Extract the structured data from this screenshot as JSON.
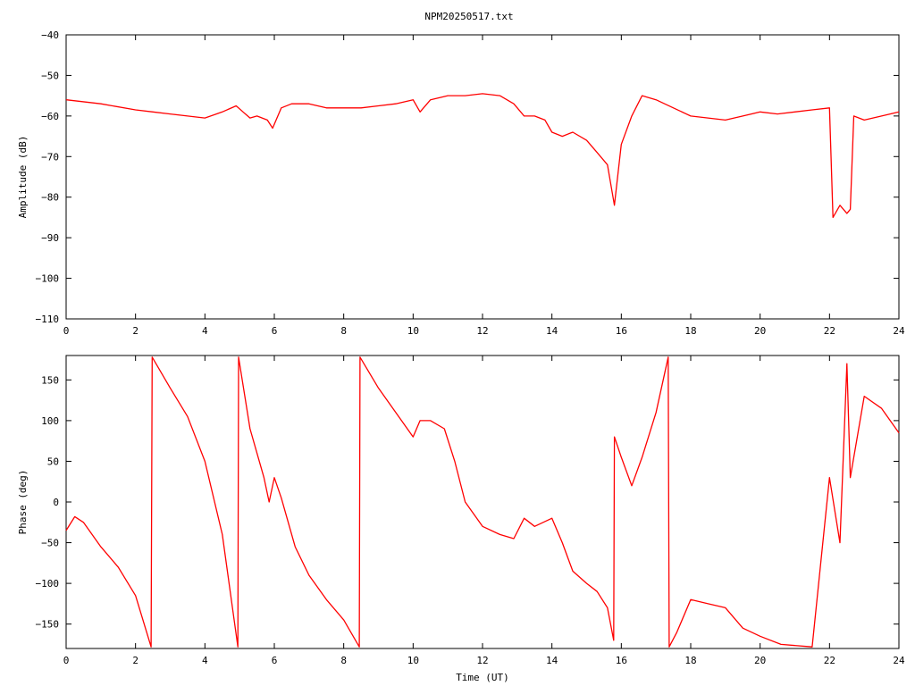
{
  "figure": {
    "title": "NPM20250517.txt",
    "background": "#ffffff",
    "line_color": "#ff0000"
  },
  "chart_data": [
    {
      "type": "line",
      "title": "NPM20250517.txt",
      "xlabel": "",
      "ylabel": "Amplitude (dB)",
      "xlim": [
        0,
        24
      ],
      "ylim": [
        -110,
        -40
      ],
      "xticks": [
        0,
        2,
        4,
        6,
        8,
        10,
        12,
        14,
        16,
        18,
        20,
        22,
        24
      ],
      "yticks": [
        -40,
        -50,
        -60,
        -70,
        -80,
        -90,
        -100,
        -110
      ],
      "grid": false,
      "series": [
        {
          "color": "#ff0000",
          "x": [
            0,
            1,
            2,
            2.5,
            3,
            3.5,
            4,
            4.5,
            4.9,
            5.1,
            5.3,
            5.5,
            5.8,
            5.95,
            6.2,
            6.5,
            7,
            7.5,
            8,
            8.5,
            9,
            9.5,
            10,
            10.2,
            10.5,
            11,
            11.5,
            12,
            12.5,
            12.9,
            13.2,
            13.5,
            13.8,
            14,
            14.3,
            14.6,
            15,
            15.3,
            15.6,
            15.8,
            16,
            16.3,
            16.6,
            17,
            17.5,
            18,
            18.5,
            19,
            19.5,
            20,
            20.5,
            21,
            21.5,
            22,
            22.1,
            22.3,
            22.5,
            22.6,
            22.7,
            23,
            23.5,
            24
          ],
          "y": [
            -56,
            -57,
            -58.5,
            -59,
            -59.5,
            -60,
            -60.5,
            -59,
            -57.5,
            -59,
            -60.5,
            -60,
            -61,
            -63,
            -58,
            -57,
            -57,
            -58,
            -58,
            -58,
            -57.5,
            -57,
            -56,
            -59,
            -56,
            -55,
            -55,
            -54.5,
            -55,
            -57,
            -60,
            -60,
            -61,
            -64,
            -65,
            -64,
            -66,
            -69,
            -72,
            -82,
            -67,
            -60,
            -55,
            -56,
            -58,
            -60,
            -60.5,
            -61,
            -60,
            -59,
            -59.5,
            -59,
            -58.5,
            -58,
            -85,
            -82,
            -84,
            -83,
            -60,
            -61,
            -60,
            -59
          ]
        }
      ]
    },
    {
      "type": "line",
      "title": "",
      "xlabel": "Time (UT)",
      "ylabel": "Phase (deg)",
      "xlim": [
        0,
        24
      ],
      "ylim": [
        -180,
        180
      ],
      "xticks": [
        0,
        2,
        4,
        6,
        8,
        10,
        12,
        14,
        16,
        18,
        20,
        22,
        24
      ],
      "yticks": [
        150,
        100,
        50,
        0,
        -50,
        -100,
        -150
      ],
      "grid": false,
      "series": [
        {
          "color": "#ff0000",
          "x": [
            0,
            0.25,
            0.5,
            1,
            1.5,
            2,
            2.45,
            2.48,
            3,
            3.5,
            4,
            4.5,
            4.95,
            4.97,
            5.3,
            5.7,
            5.85,
            6.0,
            6.2,
            6.6,
            7,
            7.5,
            8,
            8.45,
            8.47,
            9,
            9.5,
            10,
            10.2,
            10.5,
            10.9,
            11.2,
            11.5,
            12,
            12.5,
            12.9,
            13.2,
            13.5,
            14,
            14.3,
            14.6,
            15,
            15.3,
            15.6,
            15.78,
            15.8,
            16,
            16.3,
            16.6,
            17,
            17.35,
            17.38,
            17.6,
            18,
            18.5,
            19,
            19.5,
            20,
            20.6,
            21.5,
            22.0,
            22.3,
            22.5,
            22.6,
            23,
            23.5,
            24
          ],
          "y": [
            -35,
            -18,
            -25,
            -55,
            -80,
            -115,
            -178,
            178,
            140,
            105,
            50,
            -40,
            -178,
            178,
            90,
            30,
            0,
            30,
            5,
            -55,
            -90,
            -120,
            -145,
            -178,
            178,
            140,
            110,
            80,
            100,
            100,
            90,
            50,
            0,
            -30,
            -40,
            -45,
            -20,
            -30,
            -20,
            -50,
            -85,
            -100,
            -110,
            -130,
            -170,
            80,
            55,
            20,
            55,
            110,
            178,
            -178,
            -160,
            -120,
            -125,
            -130,
            -155,
            -165,
            -175,
            -178,
            30,
            -50,
            170,
            30,
            130,
            115,
            85
          ]
        }
      ]
    }
  ]
}
